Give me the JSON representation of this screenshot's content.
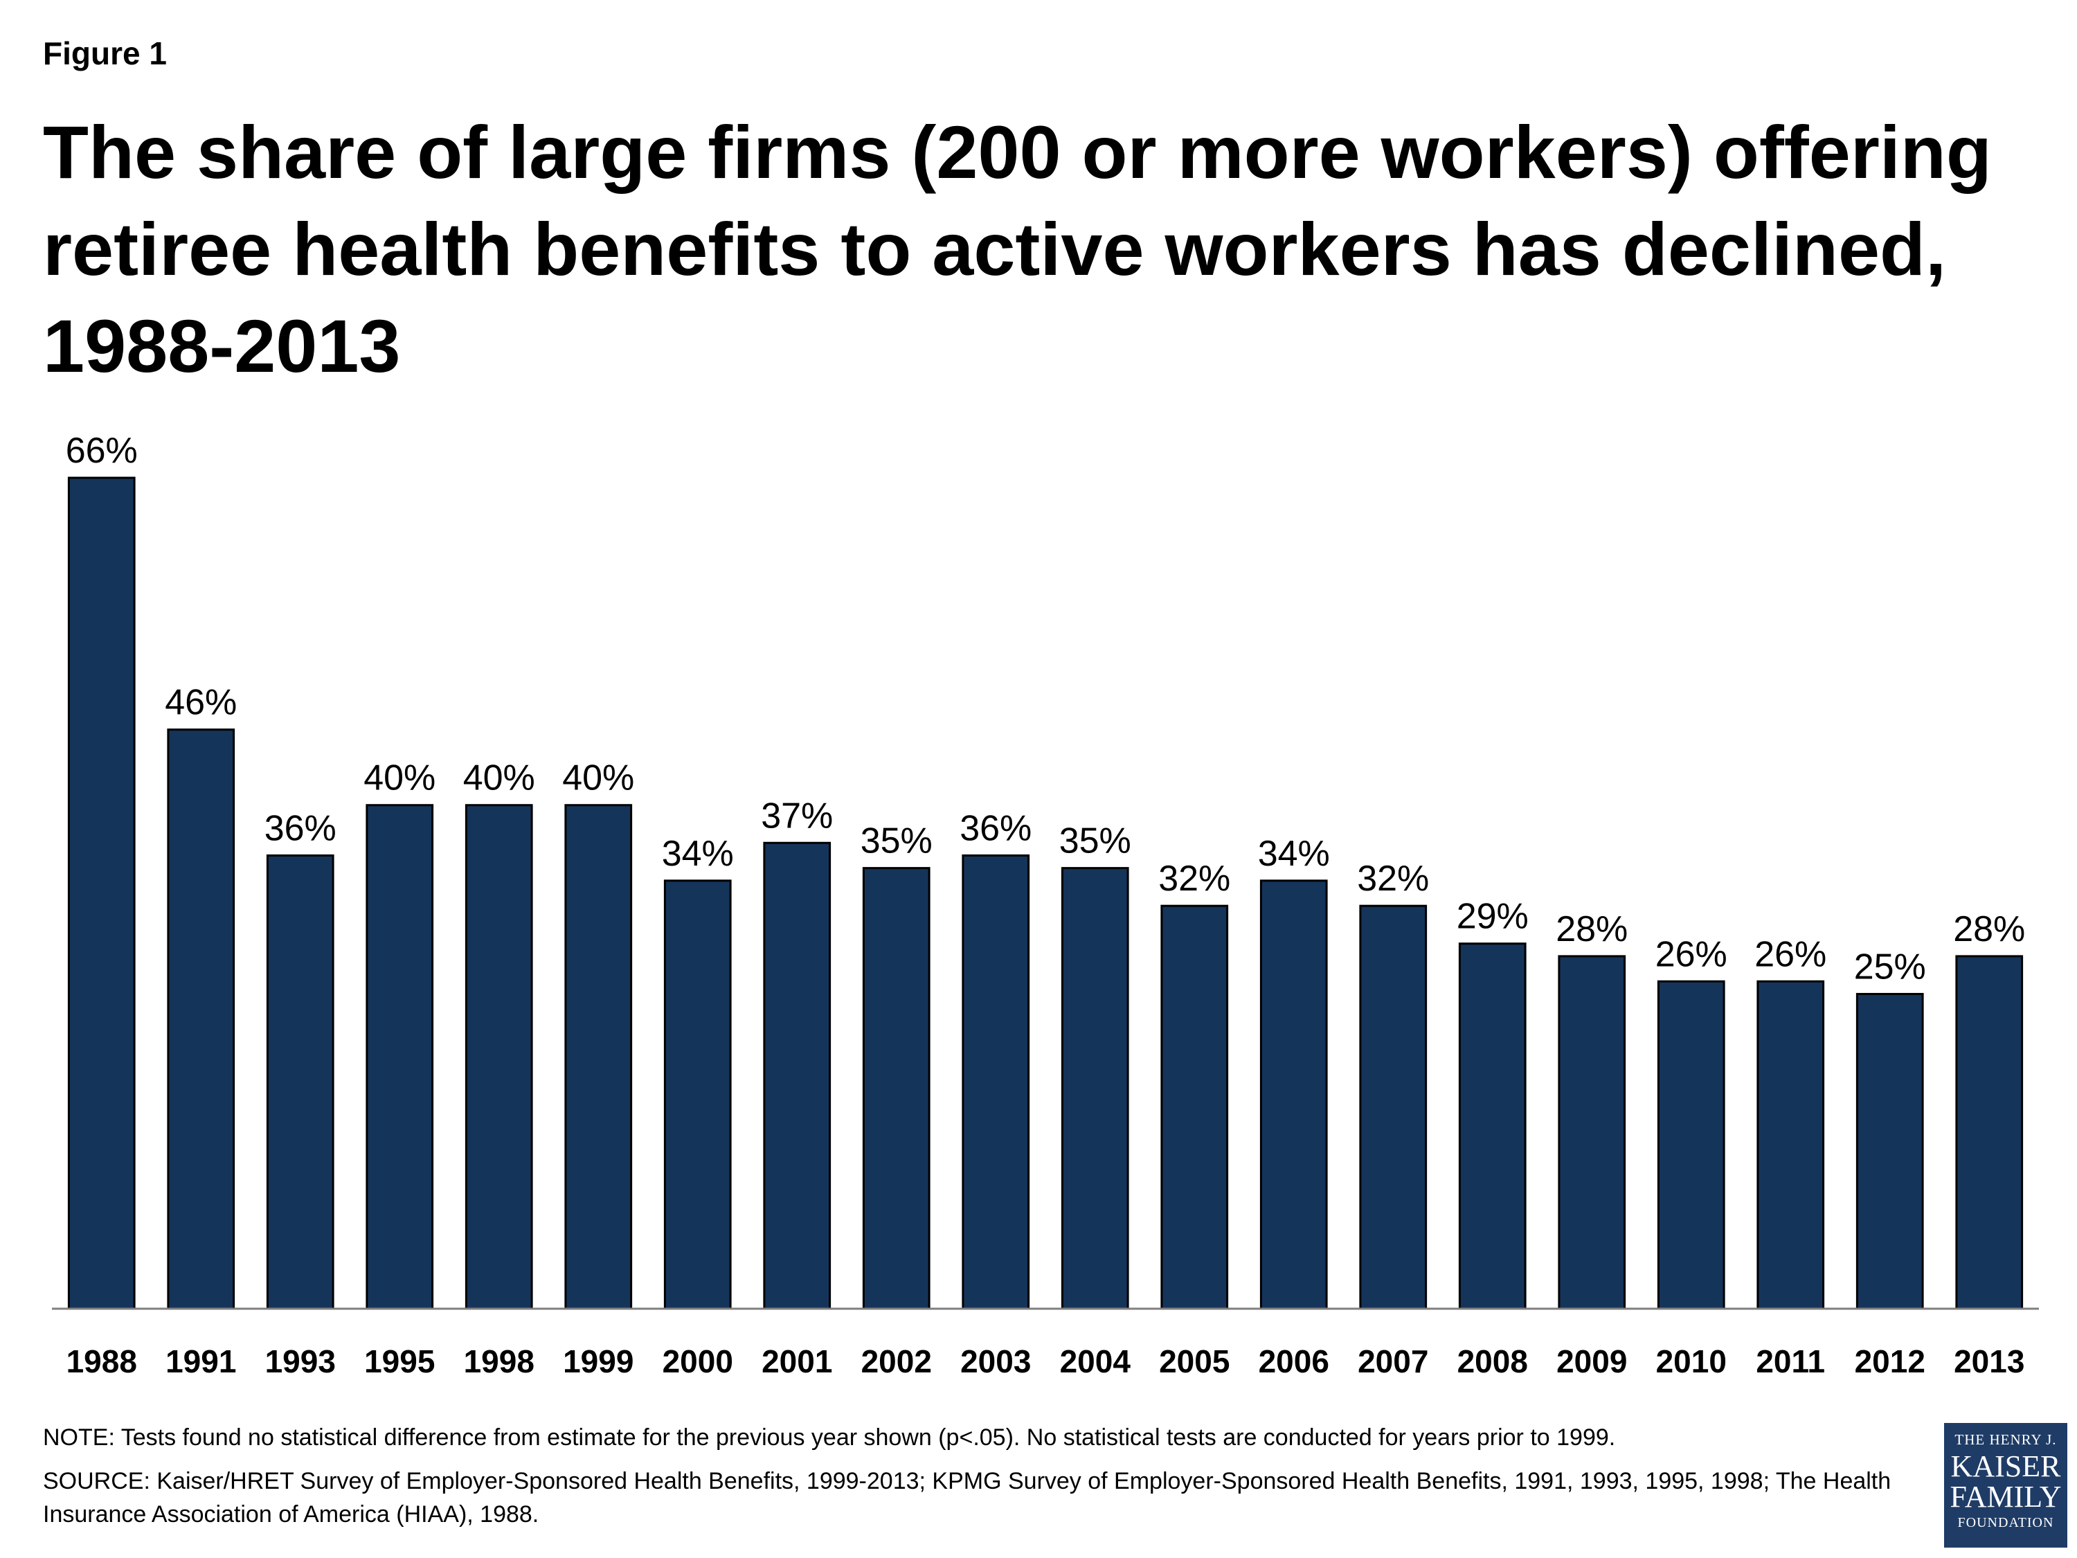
{
  "figure_label": "Figure 1",
  "title": "The share of large firms (200 or more workers) offering retiree health benefits to active workers has declined, 1988-2013",
  "note": "NOTE: Tests found no statistical difference from estimate for the previous year shown (p<.05).  No statistical tests are conducted for years prior to 1999.",
  "source": "SOURCE: Kaiser/HRET Survey of Employer-Sponsored Health Benefits, 1999-2013; KPMG Survey of Employer-Sponsored Health Benefits, 1991, 1993, 1995, 1998; The Health Insurance Association of America (HIAA), 1988.",
  "logo": {
    "line1": "THE HENRY J.",
    "line2": "KAISER",
    "line3": "FAMILY",
    "line4": "FOUNDATION"
  },
  "colors": {
    "bar": "#15345a",
    "logo_bg": "#1f3c66"
  },
  "chart_data": {
    "type": "bar",
    "title": "The share of large firms (200 or more workers) offering retiree health benefits to active workers has declined, 1988-2013",
    "xlabel": "",
    "ylabel": "",
    "ylim": [
      0,
      66
    ],
    "grid": false,
    "legend": "none",
    "categories": [
      "1988",
      "1991",
      "1993",
      "1995",
      "1998",
      "1999",
      "2000",
      "2001",
      "2002",
      "2003",
      "2004",
      "2005",
      "2006",
      "2007",
      "2008",
      "2009",
      "2010",
      "2011",
      "2012",
      "2013"
    ],
    "values": [
      66,
      46,
      36,
      40,
      40,
      40,
      34,
      37,
      35,
      36,
      35,
      32,
      34,
      32,
      29,
      28,
      26,
      26,
      25,
      28
    ],
    "value_labels": [
      "66%",
      "46%",
      "36%",
      "40%",
      "40%",
      "40%",
      "34%",
      "37%",
      "35%",
      "36%",
      "35%",
      "32%",
      "34%",
      "32%",
      "29%",
      "28%",
      "26%",
      "26%",
      "25%",
      "28%"
    ]
  }
}
